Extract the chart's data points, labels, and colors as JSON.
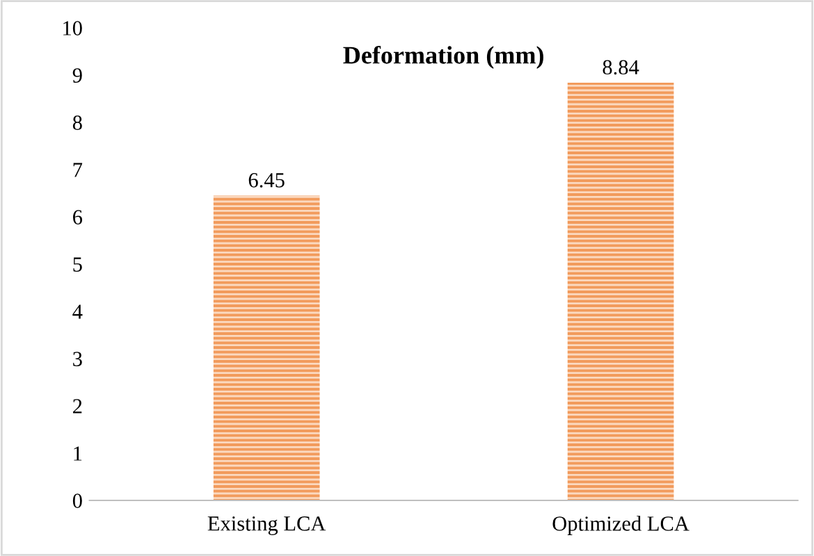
{
  "chart_data": {
    "type": "bar",
    "title": "Deformation (mm)",
    "categories": [
      "Existing LCA",
      "Optimized LCA"
    ],
    "values": [
      6.45,
      8.84
    ],
    "color": "#f29b5c",
    "ylim": [
      0,
      10
    ],
    "yticks": [
      0,
      1,
      2,
      3,
      4,
      5,
      6,
      7,
      8,
      9,
      10
    ],
    "grid": false,
    "data_labels": true
  }
}
